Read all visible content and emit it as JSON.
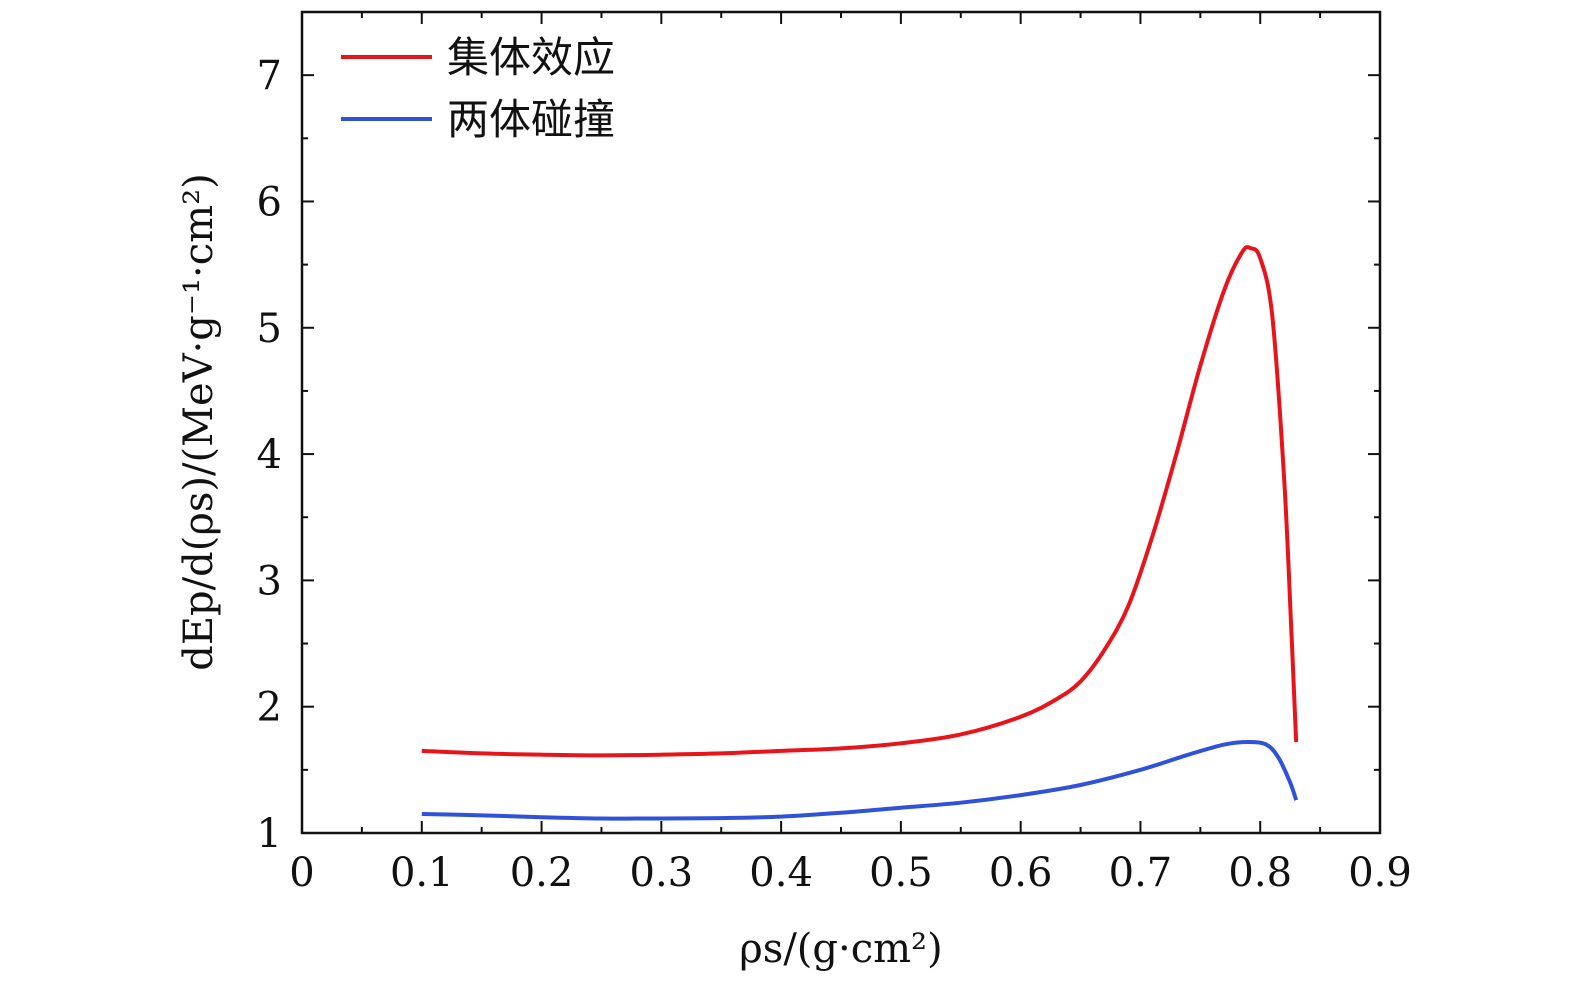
{
  "chart_data": {
    "type": "line",
    "xlabel": "ρs/(g·cm²)",
    "ylabel": "dEp/d(ρs)/(MeV·g⁻¹·cm²)",
    "xlim": [
      0,
      0.9
    ],
    "ylim": [
      1,
      7.5
    ],
    "x_ticks": [
      "0",
      "0.1",
      "0.2",
      "0.3",
      "0.4",
      "0.5",
      "0.6",
      "0.7",
      "0.8",
      "0.9"
    ],
    "y_ticks": [
      "1",
      "2",
      "3",
      "4",
      "5",
      "6",
      "7"
    ],
    "grid": false,
    "legend_position": "top-left",
    "series": [
      {
        "name": "集体效应",
        "color": "#e8141b",
        "points": [
          [
            0.1,
            1.65
          ],
          [
            0.15,
            1.63
          ],
          [
            0.2,
            1.62
          ],
          [
            0.25,
            1.615
          ],
          [
            0.3,
            1.62
          ],
          [
            0.35,
            1.63
          ],
          [
            0.4,
            1.65
          ],
          [
            0.45,
            1.67
          ],
          [
            0.5,
            1.71
          ],
          [
            0.55,
            1.78
          ],
          [
            0.6,
            1.92
          ],
          [
            0.63,
            2.06
          ],
          [
            0.65,
            2.2
          ],
          [
            0.67,
            2.45
          ],
          [
            0.69,
            2.8
          ],
          [
            0.71,
            3.35
          ],
          [
            0.73,
            4.0
          ],
          [
            0.75,
            4.7
          ],
          [
            0.77,
            5.3
          ],
          [
            0.785,
            5.6
          ],
          [
            0.792,
            5.63
          ],
          [
            0.8,
            5.55
          ],
          [
            0.81,
            5.1
          ],
          [
            0.82,
            3.8
          ],
          [
            0.826,
            2.6
          ],
          [
            0.83,
            1.72
          ]
        ]
      },
      {
        "name": "两体碰撞",
        "color": "#2f52d9",
        "points": [
          [
            0.1,
            1.15
          ],
          [
            0.15,
            1.14
          ],
          [
            0.2,
            1.125
          ],
          [
            0.25,
            1.115
          ],
          [
            0.3,
            1.115
          ],
          [
            0.35,
            1.118
          ],
          [
            0.4,
            1.13
          ],
          [
            0.45,
            1.16
          ],
          [
            0.5,
            1.2
          ],
          [
            0.55,
            1.24
          ],
          [
            0.6,
            1.3
          ],
          [
            0.65,
            1.38
          ],
          [
            0.7,
            1.5
          ],
          [
            0.74,
            1.62
          ],
          [
            0.77,
            1.7
          ],
          [
            0.79,
            1.72
          ],
          [
            0.805,
            1.7
          ],
          [
            0.815,
            1.6
          ],
          [
            0.825,
            1.4
          ],
          [
            0.83,
            1.26
          ]
        ]
      }
    ]
  }
}
